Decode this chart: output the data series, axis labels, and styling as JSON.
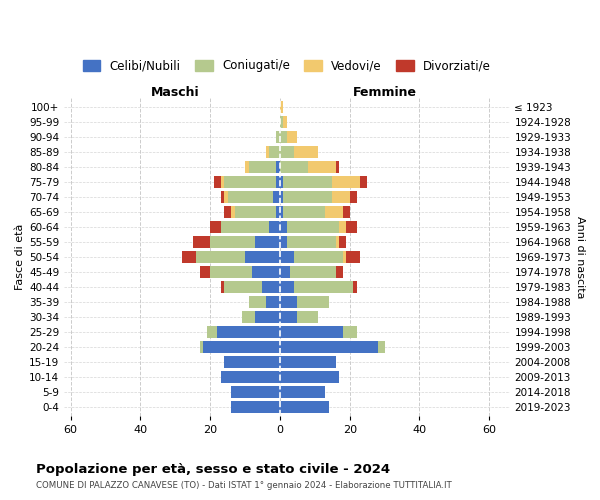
{
  "age_groups": [
    "0-4",
    "5-9",
    "10-14",
    "15-19",
    "20-24",
    "25-29",
    "30-34",
    "35-39",
    "40-44",
    "45-49",
    "50-54",
    "55-59",
    "60-64",
    "65-69",
    "70-74",
    "75-79",
    "80-84",
    "85-89",
    "90-94",
    "95-99",
    "100+"
  ],
  "birth_years": [
    "2019-2023",
    "2014-2018",
    "2009-2013",
    "2004-2008",
    "1999-2003",
    "1994-1998",
    "1989-1993",
    "1984-1988",
    "1979-1983",
    "1974-1978",
    "1969-1973",
    "1964-1968",
    "1959-1963",
    "1954-1958",
    "1949-1953",
    "1944-1948",
    "1939-1943",
    "1934-1938",
    "1929-1933",
    "1924-1928",
    "≤ 1923"
  ],
  "males": {
    "celibi": [
      14,
      14,
      17,
      16,
      22,
      18,
      7,
      4,
      5,
      8,
      10,
      7,
      3,
      1,
      2,
      1,
      1,
      0,
      0,
      0,
      0
    ],
    "coniugati": [
      0,
      0,
      0,
      0,
      1,
      3,
      4,
      5,
      11,
      12,
      14,
      13,
      14,
      12,
      13,
      15,
      8,
      3,
      1,
      0,
      0
    ],
    "vedovi": [
      0,
      0,
      0,
      0,
      0,
      0,
      0,
      0,
      0,
      0,
      0,
      0,
      0,
      1,
      1,
      1,
      1,
      1,
      0,
      0,
      0
    ],
    "divorziati": [
      0,
      0,
      0,
      0,
      0,
      0,
      0,
      0,
      1,
      3,
      4,
      5,
      3,
      2,
      1,
      2,
      0,
      0,
      0,
      0,
      0
    ]
  },
  "females": {
    "nubili": [
      14,
      13,
      17,
      16,
      28,
      18,
      5,
      5,
      4,
      3,
      4,
      2,
      2,
      1,
      1,
      1,
      0,
      0,
      0,
      0,
      0
    ],
    "coniugate": [
      0,
      0,
      0,
      0,
      2,
      4,
      6,
      9,
      17,
      13,
      14,
      14,
      15,
      12,
      14,
      14,
      8,
      4,
      2,
      1,
      0
    ],
    "vedove": [
      0,
      0,
      0,
      0,
      0,
      0,
      0,
      0,
      0,
      0,
      1,
      1,
      2,
      5,
      5,
      8,
      8,
      7,
      3,
      1,
      1
    ],
    "divorziate": [
      0,
      0,
      0,
      0,
      0,
      0,
      0,
      0,
      1,
      2,
      4,
      2,
      3,
      2,
      2,
      2,
      1,
      0,
      0,
      0,
      0
    ]
  },
  "colors": {
    "celibi": "#4472c4",
    "coniugati": "#b5c98e",
    "vedovi": "#f2c96e",
    "divorziati": "#c0392b"
  },
  "xlim": [
    -62,
    66
  ],
  "xticks": [
    -60,
    -40,
    -20,
    0,
    20,
    40,
    60
  ],
  "xticklabels": [
    "60",
    "40",
    "20",
    "0",
    "20",
    "40",
    "60"
  ],
  "title": "Popolazione per età, sesso e stato civile - 2024",
  "subtitle": "COMUNE DI PALAZZO CANAVESE (TO) - Dati ISTAT 1° gennaio 2024 - Elaborazione TUTTITALIA.IT",
  "ylabel_left": "Fasce di età",
  "ylabel_right": "Anni di nascita",
  "label_maschi": "Maschi",
  "label_femmine": "Femmine",
  "legend_labels": [
    "Celibi/Nubili",
    "Coniugati/e",
    "Vedovi/e",
    "Divorziati/e"
  ],
  "background_color": "#ffffff",
  "grid_color": "#cccccc"
}
